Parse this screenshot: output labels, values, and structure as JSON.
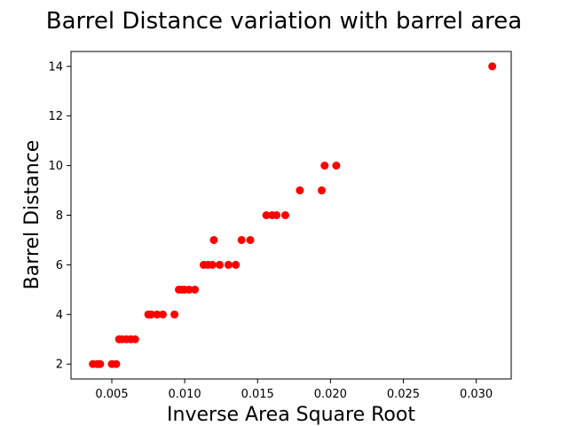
{
  "chart_data": {
    "type": "scatter",
    "title": "Barrel Distance variation with barrel area",
    "xlabel": "Inverse Area Square Root",
    "ylabel": "Barrel Distance",
    "xlim": [
      0.0022,
      0.0324
    ],
    "ylim": [
      1.4,
      14.6
    ],
    "xticks": [
      0.005,
      0.01,
      0.015,
      0.02,
      0.025,
      0.03
    ],
    "xtick_labels": [
      "0.005",
      "0.010",
      "0.015",
      "0.020",
      "0.025",
      "0.030"
    ],
    "yticks": [
      2,
      4,
      6,
      8,
      10,
      12,
      14
    ],
    "ytick_labels": [
      "2",
      "4",
      "6",
      "8",
      "10",
      "12",
      "14"
    ],
    "grid": false,
    "marker_color": "#ff0000",
    "series": [
      {
        "points": [
          [
            0.0037,
            2
          ],
          [
            0.004,
            2
          ],
          [
            0.0042,
            2
          ],
          [
            0.005,
            2
          ],
          [
            0.0053,
            2
          ],
          [
            0.0055,
            3
          ],
          [
            0.0057,
            3
          ],
          [
            0.006,
            3
          ],
          [
            0.0063,
            3
          ],
          [
            0.0066,
            3
          ],
          [
            0.0075,
            4
          ],
          [
            0.0077,
            4
          ],
          [
            0.0081,
            4
          ],
          [
            0.0085,
            4
          ],
          [
            0.0093,
            4
          ],
          [
            0.0096,
            5
          ],
          [
            0.0098,
            5
          ],
          [
            0.01,
            5
          ],
          [
            0.0103,
            5
          ],
          [
            0.0107,
            5
          ],
          [
            0.0113,
            6
          ],
          [
            0.0116,
            6
          ],
          [
            0.0119,
            6
          ],
          [
            0.012,
            7
          ],
          [
            0.0124,
            6
          ],
          [
            0.013,
            6
          ],
          [
            0.0135,
            6
          ],
          [
            0.0139,
            7
          ],
          [
            0.0145,
            7
          ],
          [
            0.0156,
            8
          ],
          [
            0.016,
            8
          ],
          [
            0.0163,
            8
          ],
          [
            0.0169,
            8
          ],
          [
            0.0179,
            9
          ],
          [
            0.0194,
            9
          ],
          [
            0.0196,
            10
          ],
          [
            0.0204,
            10
          ],
          [
            0.0311,
            14
          ]
        ]
      }
    ]
  }
}
